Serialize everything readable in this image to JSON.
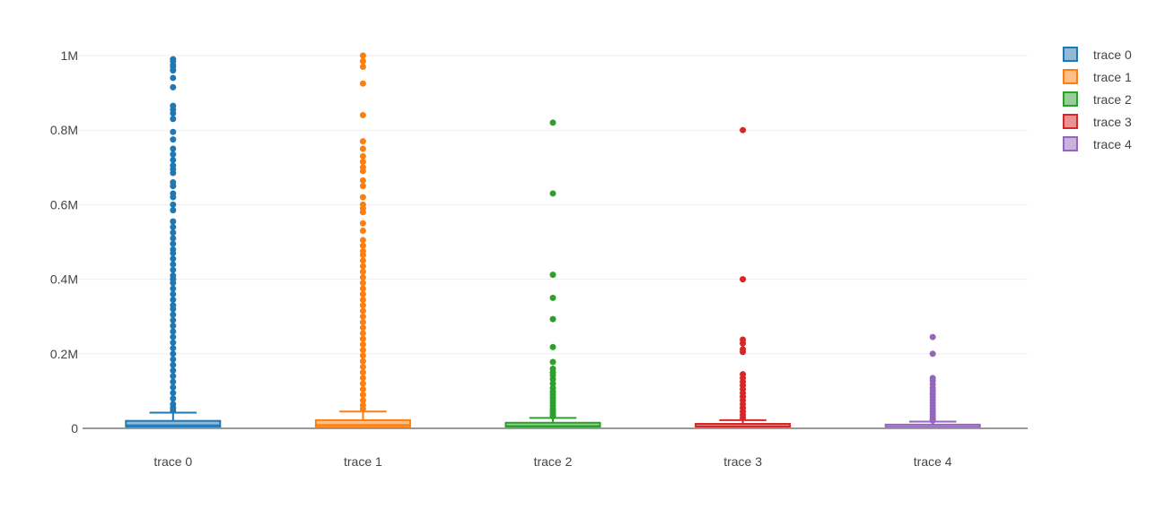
{
  "chart_data": {
    "type": "box",
    "title": "",
    "xlabel": "",
    "ylabel": "",
    "ylim": [
      0,
      1050000
    ],
    "y_ticks": [
      {
        "value": 0,
        "label": "0"
      },
      {
        "value": 200000,
        "label": "0.2M"
      },
      {
        "value": 400000,
        "label": "0.4M"
      },
      {
        "value": 600000,
        "label": "0.6M"
      },
      {
        "value": 800000,
        "label": "0.8M"
      },
      {
        "value": 1000000,
        "label": "1M"
      }
    ],
    "grid": true,
    "legend_position": "top-right",
    "categories": [
      "trace 0",
      "trace 1",
      "trace 2",
      "trace 3",
      "trace 4"
    ],
    "series": [
      {
        "name": "trace 0",
        "color": "#1f77b4",
        "min": 0,
        "q1": 3000,
        "median": 8000,
        "q3": 20000,
        "upper_fence": 42000,
        "outliers": [
          990000,
          985000,
          975000,
          970000,
          960000,
          940000,
          915000,
          865000,
          855000,
          845000,
          830000,
          795000,
          775000,
          750000,
          735000,
          720000,
          705000,
          695000,
          685000,
          660000,
          650000,
          630000,
          620000,
          600000,
          585000,
          555000,
          540000,
          525000,
          510000,
          495000,
          480000,
          470000,
          455000,
          440000,
          425000,
          410000,
          400000,
          390000,
          375000,
          360000,
          345000,
          330000,
          320000,
          305000,
          290000,
          275000,
          260000,
          245000,
          230000,
          215000,
          200000,
          185000,
          170000,
          155000,
          140000,
          125000,
          110000,
          95000,
          80000,
          65000,
          55000,
          48000
        ]
      },
      {
        "name": "trace 1",
        "color": "#ff7f0e",
        "min": 0,
        "q1": 3000,
        "median": 9000,
        "q3": 22000,
        "upper_fence": 45000,
        "outliers": [
          1000000,
          985000,
          970000,
          925000,
          840000,
          770000,
          750000,
          730000,
          715000,
          700000,
          690000,
          665000,
          650000,
          620000,
          600000,
          590000,
          580000,
          550000,
          530000,
          505000,
          490000,
          475000,
          465000,
          450000,
          435000,
          420000,
          405000,
          390000,
          375000,
          360000,
          345000,
          330000,
          315000,
          300000,
          285000,
          270000,
          255000,
          240000,
          225000,
          210000,
          195000,
          180000,
          165000,
          150000,
          135000,
          120000,
          105000,
          90000,
          75000,
          62000,
          52000
        ]
      },
      {
        "name": "trace 2",
        "color": "#2ca02c",
        "min": 0,
        "q1": 2000,
        "median": 6000,
        "q3": 15000,
        "upper_fence": 28000,
        "outliers": [
          820000,
          630000,
          412000,
          350000,
          293000,
          218000,
          178000,
          160000,
          150000,
          142000,
          132000,
          120000,
          108000,
          98000,
          90000,
          82000,
          75000,
          68000,
          60000,
          52000,
          45000,
          38000,
          32000
        ]
      },
      {
        "name": "trace 3",
        "color": "#d62728",
        "min": 0,
        "q1": 2000,
        "median": 5000,
        "q3": 12000,
        "upper_fence": 22000,
        "outliers": [
          800000,
          400000,
          238000,
          228000,
          212000,
          205000,
          145000,
          135000,
          125000,
          115000,
          105000,
          95000,
          85000,
          75000,
          65000,
          55000,
          45000,
          36000,
          28000
        ]
      },
      {
        "name": "trace 4",
        "color": "#9467bd",
        "min": 0,
        "q1": 1500,
        "median": 4000,
        "q3": 10000,
        "upper_fence": 18000,
        "outliers": [
          245000,
          200000,
          135000,
          128000,
          118000,
          108000,
          100000,
          92000,
          84000,
          76000,
          68000,
          60000,
          52000,
          45000,
          38000,
          31000,
          25000,
          21000
        ]
      }
    ]
  }
}
